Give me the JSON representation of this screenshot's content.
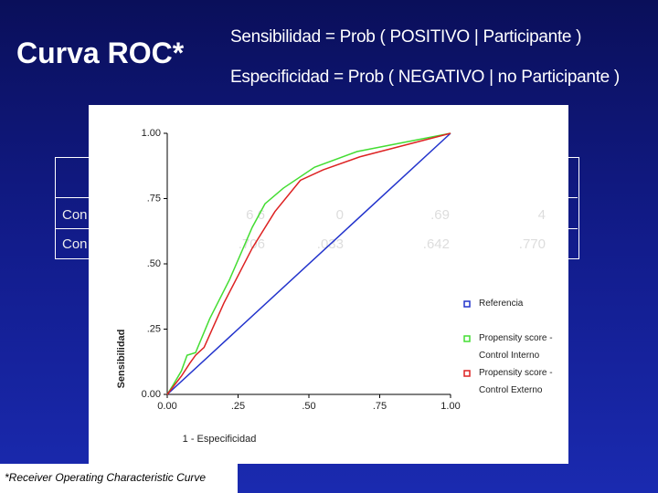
{
  "slide": {
    "title": "Curva ROC*",
    "lines": [
      "Sensibilidad = Prob ( POSITIVO | Participante )",
      "Especificidad  = Prob ( NEGATIVO | no Participante )"
    ],
    "footnote": "*Receiver Operating Characteristic Curve",
    "table": {
      "rows": [
        [
          "Con",
          "6 6",
          "0",
          ".69",
          "4"
        ],
        [
          "Con",
          ".706",
          ".033",
          ".642",
          ".770"
        ]
      ]
    }
  },
  "chart_data": {
    "type": "line",
    "xlabel": "1 - Especificidad",
    "ylabel": "Sensibilidad",
    "xlim": [
      0,
      1
    ],
    "ylim": [
      0,
      1
    ],
    "xticks": [
      {
        "value": 0,
        "label": "0.00"
      },
      {
        "value": 0.25,
        "label": ".25"
      },
      {
        "value": 0.5,
        "label": ".50"
      },
      {
        "value": 0.75,
        "label": ".75"
      },
      {
        "value": 1,
        "label": "1.00"
      }
    ],
    "yticks": [
      {
        "value": 0,
        "label": "0.00"
      },
      {
        "value": 0.25,
        "label": ".25"
      },
      {
        "value": 0.5,
        "label": ".50"
      },
      {
        "value": 0.75,
        "label": ".75"
      },
      {
        "value": 1,
        "label": "1.00"
      }
    ],
    "series": [
      {
        "name": "Referencia",
        "color": "#2233cc",
        "x": [
          0,
          1
        ],
        "values": [
          0,
          1
        ]
      },
      {
        "name": "Propensity score - Control Interno",
        "color": "#44dd33",
        "x": [
          0,
          0.023,
          0.05,
          0.07,
          0.1,
          0.15,
          0.22,
          0.3,
          0.345,
          0.41,
          0.52,
          0.67,
          1
        ],
        "values": [
          0,
          0.04,
          0.09,
          0.15,
          0.16,
          0.29,
          0.44,
          0.64,
          0.73,
          0.79,
          0.87,
          0.93,
          1
        ]
      },
      {
        "name": "Propensity score - Control Externo",
        "color": "#dd2222",
        "x": [
          0,
          0.05,
          0.08,
          0.1,
          0.13,
          0.2,
          0.3,
          0.38,
          0.47,
          0.55,
          0.68,
          1
        ],
        "values": [
          0,
          0.07,
          0.12,
          0.15,
          0.18,
          0.35,
          0.56,
          0.7,
          0.82,
          0.86,
          0.91,
          1
        ]
      }
    ],
    "legend": "right"
  }
}
